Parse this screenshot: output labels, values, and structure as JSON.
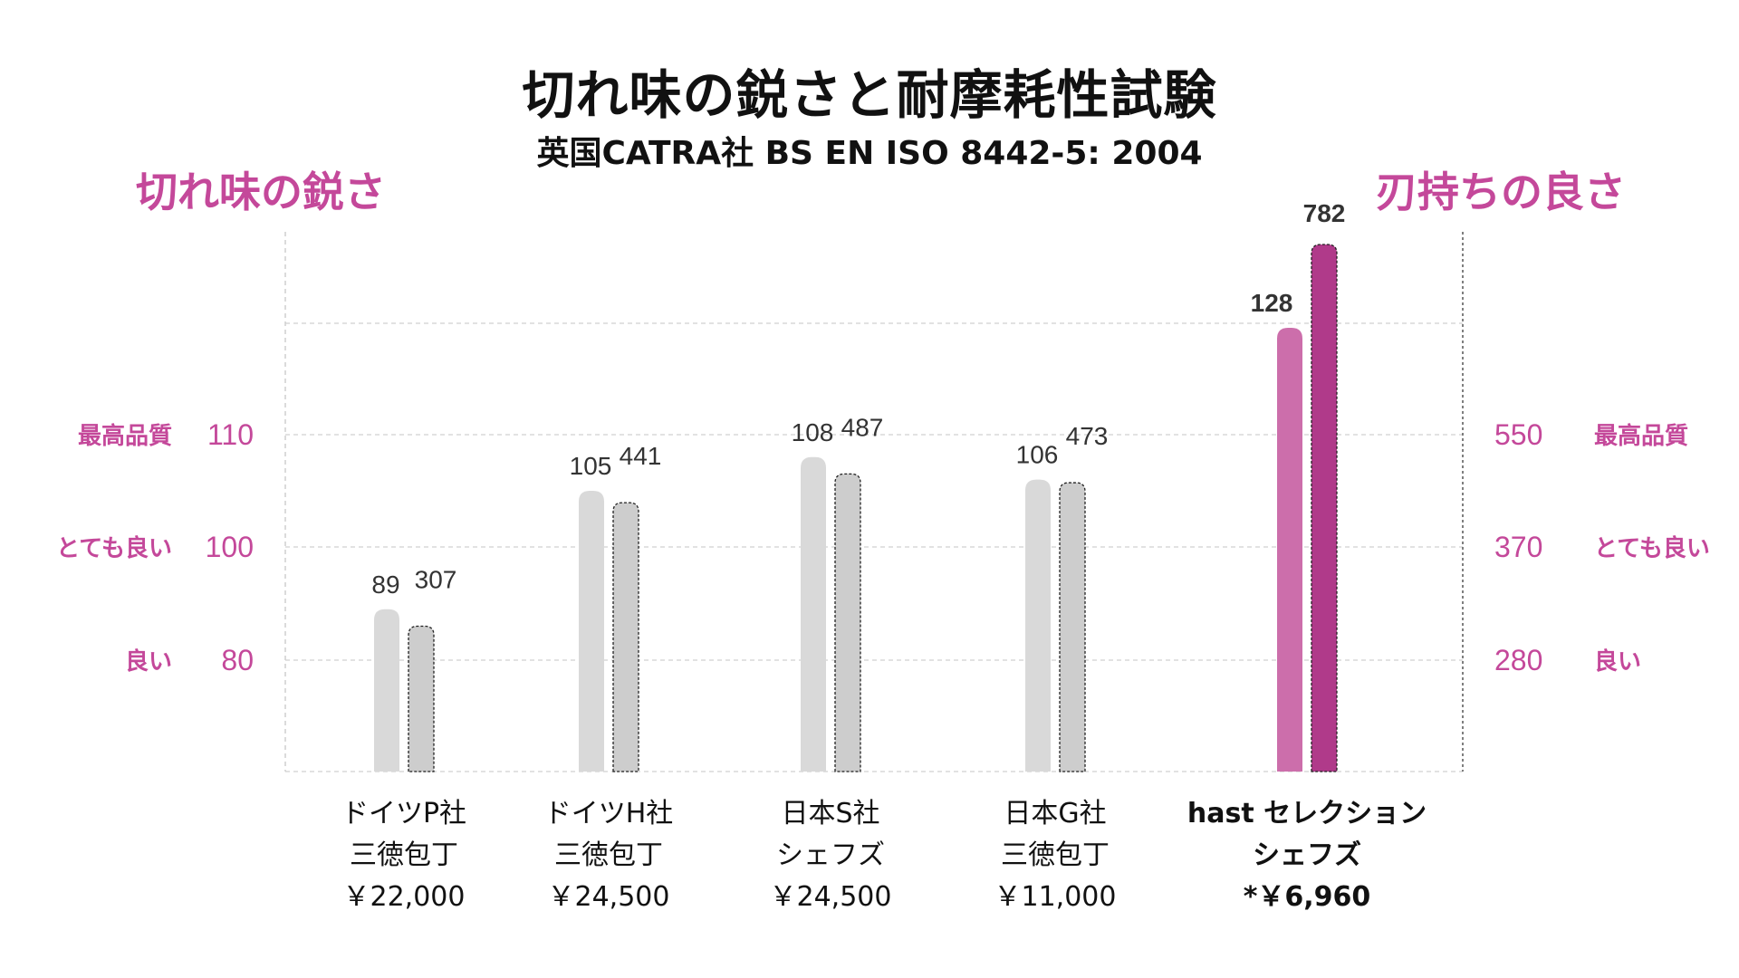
{
  "title": "切れ味の鋭さと耐摩耗性試験",
  "subtitle": "英国CATRA社 BS EN ISO 8442-5: 2004",
  "left_axis_title": "切れ味の鋭さ",
  "right_axis_title": "刃持ちの良さ",
  "colors": {
    "sharpness_default": "#d9d9d9",
    "durability_default": "#cdcdcd",
    "sharpness_highlight": "#cc6eab",
    "durability_highlight": "#b03a8a",
    "accent": "#c4489a"
  },
  "chart_data": {
    "type": "bar",
    "title": "切れ味の鋭さと耐摩耗性試験",
    "subtitle": "英国CATRA社 BS EN ISO 8442-5: 2004",
    "categories": [
      {
        "lines": [
          "ドイツP社",
          "三徳包丁",
          "￥22,000"
        ],
        "highlight": false
      },
      {
        "lines": [
          "ドイツH社",
          "三徳包丁",
          "￥24,500"
        ],
        "highlight": false
      },
      {
        "lines": [
          "日本S社",
          "シェフズ",
          "￥24,500"
        ],
        "highlight": false
      },
      {
        "lines": [
          "日本G社",
          "三徳包丁",
          "￥11,000"
        ],
        "highlight": false
      },
      {
        "lines": [
          "hast セレクション",
          "シェフズ",
          "*￥6,960"
        ],
        "highlight": true
      }
    ],
    "series": [
      {
        "name": "切れ味の鋭さ",
        "axis": "left",
        "values": [
          89,
          105,
          108,
          106,
          128
        ]
      },
      {
        "name": "刃持ちの良さ",
        "axis": "right",
        "values": [
          307,
          441,
          487,
          473,
          782
        ]
      }
    ],
    "left_axis": {
      "ticks": [
        {
          "value": 80,
          "label": "80",
          "desc": "良い"
        },
        {
          "value": 100,
          "label": "100",
          "desc": "とても良い"
        },
        {
          "value": 110,
          "label": "110",
          "desc": "最高品質"
        }
      ]
    },
    "right_axis": {
      "ticks": [
        {
          "value": 280,
          "label": "280",
          "desc": "良い"
        },
        {
          "value": 370,
          "label": "370",
          "desc": "とても良い"
        },
        {
          "value": 550,
          "label": "550",
          "desc": "最高品質"
        }
      ]
    },
    "grid": true,
    "legend": "none"
  }
}
